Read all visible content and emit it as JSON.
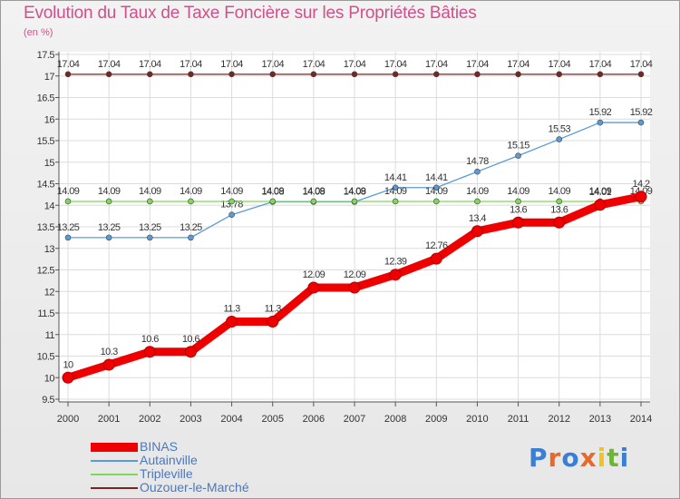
{
  "title": "Evolution du Taux de Taxe Foncière sur les Propriétés Bâties",
  "unit": "(en %)",
  "brand": {
    "letters": [
      "P",
      "r",
      "o",
      "x",
      "i",
      "t",
      "i"
    ],
    "colors": [
      "#3b7fd4",
      "#e8692a",
      "#3b7fd4",
      "#e8692a",
      "#f0c31e",
      "#6fb33a",
      "#3b7fd4"
    ]
  },
  "chart_data": {
    "type": "line",
    "title": "Evolution du Taux de Taxe Foncière sur les Propriétés Bâties",
    "ylabel": "(en %)",
    "xlabel": "",
    "ylim": [
      9.5,
      17.5
    ],
    "yticks": [
      "9.5",
      "10",
      "10.5",
      "11",
      "11.5",
      "12",
      "12.5",
      "13",
      "13.5",
      "14",
      "14.5",
      "15",
      "15.5",
      "16",
      "16.5",
      "17",
      "17.5"
    ],
    "categories": [
      "2000",
      "2001",
      "2002",
      "2003",
      "2004",
      "2005",
      "2006",
      "2007",
      "2008",
      "2009",
      "2010",
      "2011",
      "2012",
      "2013",
      "2014"
    ],
    "series": [
      {
        "name": "Ouzouer-le-Marché",
        "color": "#7a2424",
        "values": [
          17.04,
          17.04,
          17.04,
          17.04,
          17.04,
          17.04,
          17.04,
          17.04,
          17.04,
          17.04,
          17.04,
          17.04,
          17.04,
          17.04,
          17.04
        ],
        "labels": [
          "17.04",
          "17.04",
          "17.04",
          "17.04",
          "17.04",
          "17.04",
          "17.04",
          "17.04",
          "17.04",
          "17.04",
          "17.04",
          "17.04",
          "17.04",
          "17.04",
          "17.04"
        ]
      },
      {
        "name": "Autainville",
        "color": "#5b9bd5",
        "values": [
          13.25,
          13.25,
          13.25,
          13.25,
          13.78,
          14.08,
          14.08,
          14.08,
          14.41,
          14.41,
          14.78,
          15.15,
          15.53,
          15.92,
          15.92
        ],
        "labels": [
          "13.25",
          "13.25",
          "13.25",
          "13.25",
          "13.78",
          "14.08",
          "14.08",
          "14.08",
          "14.41",
          "14.41",
          "14.78",
          "15.15",
          "15.53",
          "15.92",
          "15.92"
        ]
      },
      {
        "name": "Tripleville",
        "color": "#7ed957",
        "values": [
          14.09,
          14.09,
          14.09,
          14.09,
          14.09,
          14.09,
          14.09,
          14.09,
          14.09,
          14.09,
          14.09,
          14.09,
          14.09,
          14.09,
          14.09
        ],
        "labels": [
          "14.09",
          "14.09",
          "14.09",
          "14.09",
          "14.09",
          "14.09",
          "14.09",
          "14.09",
          "14.09",
          "14.09",
          "14.09",
          "14.09",
          "14.09",
          "14.09",
          "14.09"
        ]
      },
      {
        "name": "BINAS",
        "color": "#ee0000",
        "values": [
          10,
          10.3,
          10.6,
          10.6,
          11.3,
          11.3,
          12.09,
          12.09,
          12.39,
          12.76,
          13.4,
          13.6,
          13.6,
          14.01,
          14.2
        ],
        "labels": [
          "10",
          "10.3",
          "10.6",
          "10.6",
          "11.3",
          "11.3",
          "12.09",
          "12.09",
          "12.39",
          "12.76",
          "13.4",
          "13.6",
          "13.6",
          "14.01",
          "14.2"
        ]
      }
    ],
    "legend": [
      "BINAS",
      "Autainville",
      "Tripleville",
      "Ouzouer-le-Marché"
    ]
  }
}
